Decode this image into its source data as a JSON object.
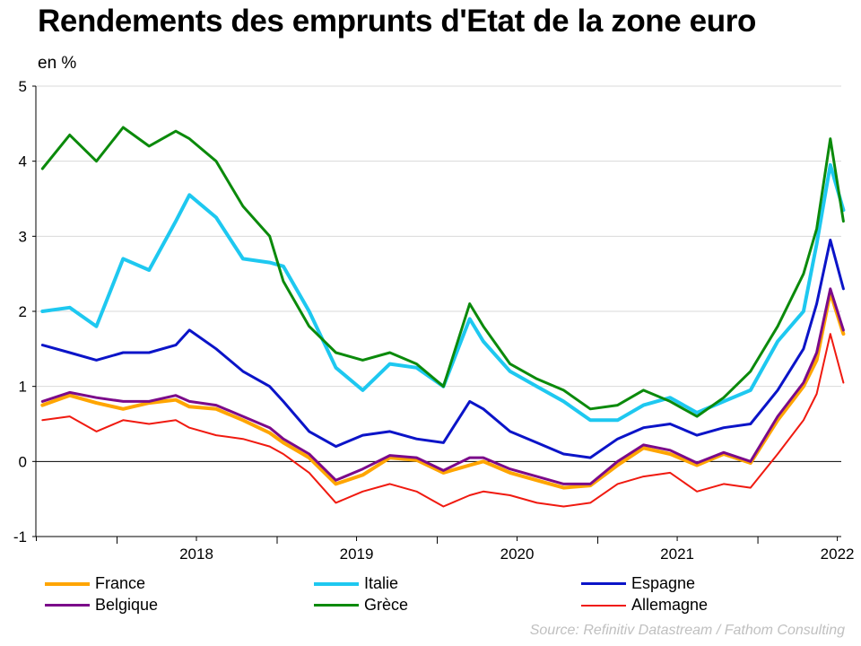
{
  "header": {
    "title": "Rendements des emprunts d'Etat de la zone euro",
    "unit": "en %"
  },
  "source": "Source: Refinitiv Datastream / Fathom Consulting",
  "chart_data": {
    "type": "line",
    "title": "Rendements des emprunts d'Etat de la zone euro",
    "ylabel": "en %",
    "xlabel": "",
    "ylim": [
      -1,
      5
    ],
    "xlim": [
      "2017-06-30",
      "2022-07-10"
    ],
    "yticks": [
      5,
      4,
      3,
      2,
      1,
      0,
      -1
    ],
    "xtick_labels": [
      "2018",
      "2019",
      "2020",
      "2021",
      "2022"
    ],
    "xtick_positions": [
      "2018-07-01",
      "2019-07-01",
      "2020-07-01",
      "2021-07-01",
      "2022-07-01"
    ],
    "grid": "horizontal",
    "legend_position": "bottom",
    "x": [
      "2017-07",
      "2017-09",
      "2017-11",
      "2018-01",
      "2018-03",
      "2018-05",
      "2018-06",
      "2018-08",
      "2018-10",
      "2018-12",
      "2019-01",
      "2019-03",
      "2019-05",
      "2019-07",
      "2019-09",
      "2019-11",
      "2020-01",
      "2020-03",
      "2020-04",
      "2020-06",
      "2020-08",
      "2020-10",
      "2020-12",
      "2021-02",
      "2021-04",
      "2021-06",
      "2021-08",
      "2021-10",
      "2021-12",
      "2022-02",
      "2022-04",
      "2022-05",
      "2022-06",
      "2022-07"
    ],
    "series": [
      {
        "name": "France",
        "color": "#FFA500",
        "width": 4,
        "values": [
          0.75,
          0.88,
          0.78,
          0.7,
          0.78,
          0.82,
          0.73,
          0.7,
          0.55,
          0.38,
          0.25,
          0.05,
          -0.3,
          -0.18,
          0.05,
          0.02,
          -0.15,
          -0.05,
          0.0,
          -0.15,
          -0.25,
          -0.35,
          -0.32,
          -0.05,
          0.18,
          0.1,
          -0.05,
          0.1,
          -0.02,
          0.55,
          1.0,
          1.35,
          2.25,
          1.7
        ]
      },
      {
        "name": "Italie",
        "color": "#1EC8F0",
        "width": 4,
        "values": [
          2.0,
          2.05,
          1.8,
          2.7,
          2.55,
          3.2,
          3.55,
          3.25,
          2.7,
          2.65,
          2.6,
          2.0,
          1.25,
          0.95,
          1.3,
          1.25,
          1.0,
          1.9,
          1.6,
          1.2,
          1.0,
          0.8,
          0.55,
          0.55,
          0.75,
          0.85,
          0.65,
          0.8,
          0.95,
          1.6,
          2.0,
          2.9,
          3.95,
          3.35
        ]
      },
      {
        "name": "Espagne",
        "color": "#0B14C8",
        "width": 3,
        "values": [
          1.55,
          1.45,
          1.35,
          1.45,
          1.45,
          1.55,
          1.75,
          1.5,
          1.2,
          1.0,
          0.8,
          0.4,
          0.2,
          0.35,
          0.4,
          0.3,
          0.25,
          0.8,
          0.7,
          0.4,
          0.25,
          0.1,
          0.05,
          0.3,
          0.45,
          0.5,
          0.35,
          0.45,
          0.5,
          0.95,
          1.5,
          2.1,
          2.95,
          2.3
        ]
      },
      {
        "name": "Grèce",
        "color": "#0B8A0B",
        "width": 3,
        "values": [
          3.9,
          4.35,
          4.0,
          4.45,
          4.2,
          4.4,
          4.3,
          4.0,
          3.4,
          3.0,
          2.4,
          1.8,
          1.45,
          1.35,
          1.45,
          1.3,
          1.0,
          2.1,
          1.8,
          1.3,
          1.1,
          0.95,
          0.7,
          0.75,
          0.95,
          0.8,
          0.6,
          0.85,
          1.2,
          1.8,
          2.5,
          3.1,
          4.3,
          3.2
        ]
      },
      {
        "name": "Belgique",
        "color": "#7B0A8A",
        "width": 3,
        "values": [
          0.8,
          0.92,
          0.85,
          0.8,
          0.8,
          0.88,
          0.8,
          0.75,
          0.6,
          0.45,
          0.3,
          0.1,
          -0.25,
          -0.1,
          0.08,
          0.05,
          -0.12,
          0.05,
          0.05,
          -0.1,
          -0.2,
          -0.3,
          -0.3,
          0.0,
          0.22,
          0.15,
          -0.02,
          0.12,
          0.0,
          0.6,
          1.05,
          1.45,
          2.3,
          1.75
        ]
      },
      {
        "name": "Allemagne",
        "color": "#F01A10",
        "width": 2,
        "values": [
          0.55,
          0.6,
          0.4,
          0.55,
          0.5,
          0.55,
          0.45,
          0.35,
          0.3,
          0.2,
          0.1,
          -0.15,
          -0.55,
          -0.4,
          -0.3,
          -0.4,
          -0.6,
          -0.45,
          -0.4,
          -0.45,
          -0.55,
          -0.6,
          -0.55,
          -0.3,
          -0.2,
          -0.15,
          -0.4,
          -0.3,
          -0.35,
          0.1,
          0.55,
          0.9,
          1.7,
          1.05
        ]
      }
    ],
    "legend_entries": [
      "France",
      "Italie",
      "Espagne",
      "Belgique",
      "Grèce",
      "Allemagne"
    ]
  }
}
